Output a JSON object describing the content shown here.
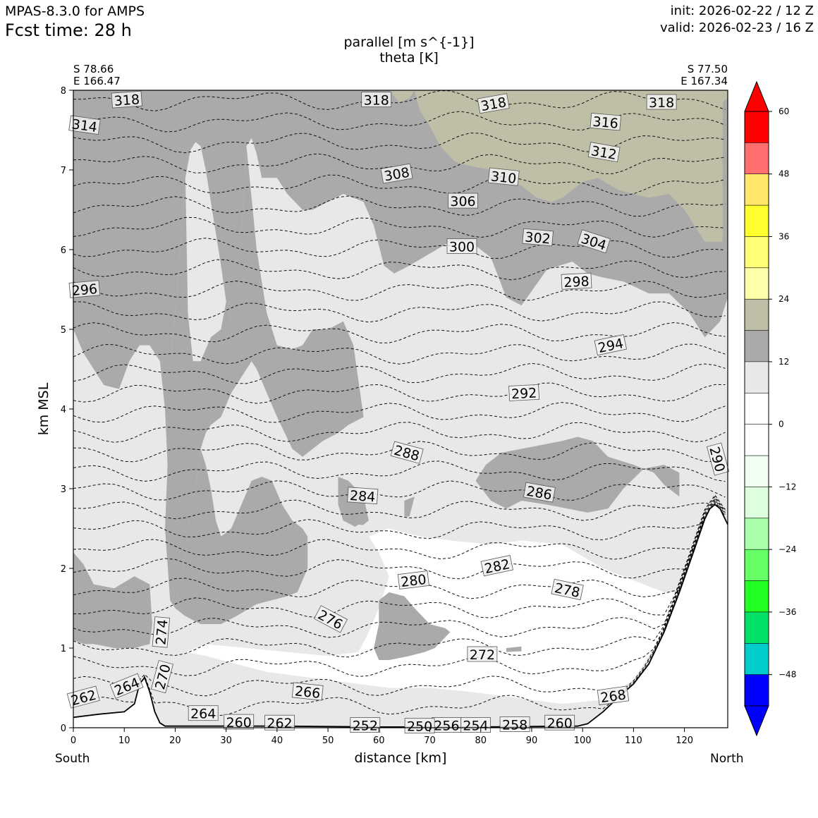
{
  "header": {
    "model": "MPAS-8.3.0 for AMPS",
    "fcst_time": "Fcst time:   28 h",
    "init": "init: 2026-02-22 / 12 Z",
    "valid": "valid: 2026-02-23 / 16 Z"
  },
  "section": {
    "left_lat": "S 78.66",
    "left_lon": "E 166.47",
    "right_lat": "S 77.50",
    "right_lon": "E 167.34",
    "left_dir": "South",
    "right_dir": "North"
  },
  "colors": {
    "shade_light": "#e8e8e8",
    "shade_dark": "#aaaaaa",
    "shade_tan": "#bfbfa8",
    "terrain": "#ffffff"
  },
  "chart_data": {
    "type": "contour",
    "title_line1": "parallel [m s^{-1}]",
    "title_line2": "theta [K]",
    "xlabel": "distance [km]",
    "ylabel": "km MSL",
    "xlim": [
      0,
      128.5
    ],
    "ylim": [
      0,
      8
    ],
    "x_ticks": [
      0,
      10,
      20,
      30,
      40,
      50,
      60,
      70,
      80,
      90,
      100,
      110,
      120
    ],
    "y_ticks": [
      0,
      1,
      2,
      3,
      4,
      5,
      6,
      7,
      8
    ],
    "contour_labels": [
      {
        "text": "318",
        "x": 10.5,
        "y": 7.88,
        "rot": -4
      },
      {
        "text": "318",
        "x": 59.5,
        "y": 7.88,
        "rot": 0
      },
      {
        "text": "318",
        "x": 82.5,
        "y": 7.83,
        "rot": -10
      },
      {
        "text": "318",
        "x": 115.5,
        "y": 7.85,
        "rot": 0
      },
      {
        "text": "314",
        "x": 2.2,
        "y": 7.56,
        "rot": 8
      },
      {
        "text": "316",
        "x": 104.5,
        "y": 7.6,
        "rot": 5
      },
      {
        "text": "312",
        "x": 104.2,
        "y": 7.22,
        "rot": 10
      },
      {
        "text": "310",
        "x": 84.5,
        "y": 6.91,
        "rot": 6
      },
      {
        "text": "308",
        "x": 63.5,
        "y": 6.95,
        "rot": -10
      },
      {
        "text": "306",
        "x": 76.5,
        "y": 6.61,
        "rot": 0
      },
      {
        "text": "302",
        "x": 91.2,
        "y": 6.15,
        "rot": 5
      },
      {
        "text": "304",
        "x": 102.2,
        "y": 6.1,
        "rot": 18
      },
      {
        "text": "300",
        "x": 76.3,
        "y": 6.04,
        "rot": 0
      },
      {
        "text": "298",
        "x": 98.8,
        "y": 5.6,
        "rot": -3
      },
      {
        "text": "296",
        "x": 2.2,
        "y": 5.5,
        "rot": -5
      },
      {
        "text": "294",
        "x": 105.5,
        "y": 4.8,
        "rot": -12
      },
      {
        "text": "292",
        "x": 88.5,
        "y": 4.2,
        "rot": -3
      },
      {
        "text": "290",
        "x": 126.5,
        "y": 3.37,
        "rot": 75
      },
      {
        "text": "288",
        "x": 65.5,
        "y": 3.45,
        "rot": 15
      },
      {
        "text": "286",
        "x": 91.5,
        "y": 2.95,
        "rot": 10
      },
      {
        "text": "284",
        "x": 56.8,
        "y": 2.91,
        "rot": 4
      },
      {
        "text": "282",
        "x": 83.2,
        "y": 2.03,
        "rot": -12
      },
      {
        "text": "280",
        "x": 66.8,
        "y": 1.85,
        "rot": -7
      },
      {
        "text": "278",
        "x": 97.0,
        "y": 1.73,
        "rot": 12
      },
      {
        "text": "276",
        "x": 50.5,
        "y": 1.36,
        "rot": 28
      },
      {
        "text": "274",
        "x": 17.3,
        "y": 1.2,
        "rot": -85
      },
      {
        "text": "272",
        "x": 80.3,
        "y": 0.92,
        "rot": 0
      },
      {
        "text": "270",
        "x": 17.5,
        "y": 0.64,
        "rot": -75
      },
      {
        "text": "268",
        "x": 106.0,
        "y": 0.4,
        "rot": -8
      },
      {
        "text": "266",
        "x": 46.0,
        "y": 0.45,
        "rot": 6
      },
      {
        "text": "264",
        "x": 10.5,
        "y": 0.52,
        "rot": -22
      },
      {
        "text": "264",
        "x": 25.5,
        "y": 0.18,
        "rot": 0
      },
      {
        "text": "262",
        "x": 2.0,
        "y": 0.38,
        "rot": -15
      },
      {
        "text": "262",
        "x": 40.5,
        "y": 0.06,
        "rot": 0
      },
      {
        "text": "260",
        "x": 32.5,
        "y": 0.07,
        "rot": 0
      },
      {
        "text": "260",
        "x": 95.5,
        "y": 0.06,
        "rot": 0
      },
      {
        "text": "258",
        "x": 86.7,
        "y": 0.04,
        "rot": 0
      },
      {
        "text": "256",
        "x": 73.3,
        "y": 0.03,
        "rot": 0
      },
      {
        "text": "254",
        "x": 79.0,
        "y": 0.03,
        "rot": 0
      },
      {
        "text": "252",
        "x": 57.3,
        "y": 0.03,
        "rot": 0
      },
      {
        "text": "250",
        "x": 68.0,
        "y": 0.02,
        "rot": 0
      }
    ],
    "terrain": [
      [
        0,
        0.13
      ],
      [
        5,
        0.17
      ],
      [
        10,
        0.2
      ],
      [
        12,
        0.3
      ],
      [
        13,
        0.55
      ],
      [
        14,
        0.63
      ],
      [
        15,
        0.45
      ],
      [
        16,
        0.2
      ],
      [
        17,
        0.06
      ],
      [
        18,
        0.02
      ],
      [
        25,
        0.02
      ],
      [
        40,
        0.02
      ],
      [
        60,
        0.01
      ],
      [
        80,
        0.01
      ],
      [
        99,
        0.02
      ],
      [
        101,
        0.05
      ],
      [
        104,
        0.2
      ],
      [
        107,
        0.38
      ],
      [
        110,
        0.55
      ],
      [
        113,
        0.8
      ],
      [
        116,
        1.2
      ],
      [
        119,
        1.7
      ],
      [
        122,
        2.25
      ],
      [
        124,
        2.62
      ],
      [
        125,
        2.75
      ],
      [
        126,
        2.8
      ],
      [
        127,
        2.75
      ],
      [
        128.5,
        2.55
      ]
    ],
    "colorbar": {
      "levels": [
        60,
        48,
        36,
        24,
        12,
        0,
        -12,
        -24,
        -36,
        -48
      ],
      "colors": [
        "#ff0000",
        "#ff6f6f",
        "#ffe66b",
        "#ffff2e",
        "#ffff77",
        "#ffffaa",
        "#bfbfa8",
        "#aaaaaa",
        "#e8e8e8",
        "#ffffff",
        "#ffffff",
        "#f0fff0",
        "#ddffdd",
        "#aaffaa",
        "#66ff66",
        "#22ff22",
        "#00e066",
        "#00cccc",
        "#0000ff"
      ],
      "over_color": "#ff0000",
      "under_color": "#0000ff",
      "tick_labels": [
        "60",
        "48",
        "36",
        "24",
        "12",
        "0",
        "−12",
        "−24",
        "−36",
        "−48"
      ]
    }
  }
}
